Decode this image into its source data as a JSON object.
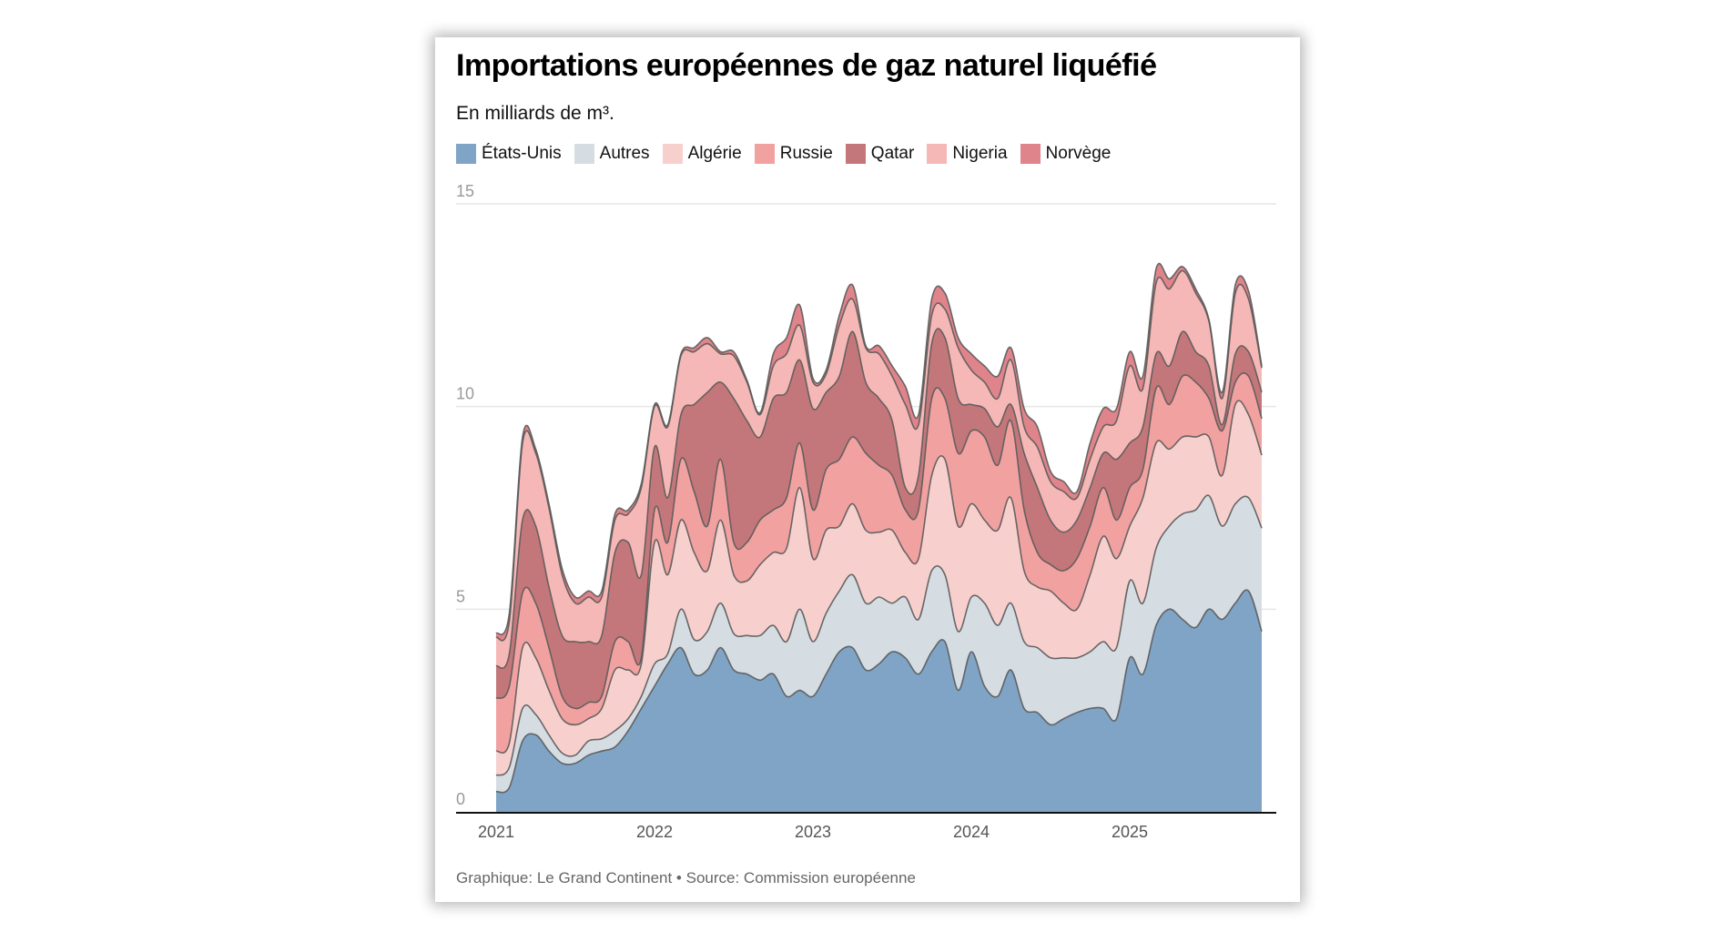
{
  "title": "Importations européennes de gaz naturel liquéfié",
  "subtitle": "En milliards de m³.",
  "footer": "Graphique: Le Grand Continent • Source: Commission européenne",
  "chart_data": {
    "type": "area",
    "stacked": true,
    "title": "Importations européennes de gaz naturel liquéfié",
    "ylabel": "En milliards de m³.",
    "ylim": [
      0,
      15
    ],
    "yticks": [
      "0",
      "5",
      "10",
      "15"
    ],
    "xticks": [
      "2021",
      "2022",
      "2023",
      "2024",
      "2025"
    ],
    "grid": true,
    "legend": "top",
    "x": [
      "2021-01",
      "2021-02",
      "2021-03",
      "2021-04",
      "2021-05",
      "2021-06",
      "2021-07",
      "2021-08",
      "2021-09",
      "2021-10",
      "2021-11",
      "2021-12",
      "2022-01",
      "2022-02",
      "2022-03",
      "2022-04",
      "2022-05",
      "2022-06",
      "2022-07",
      "2022-08",
      "2022-09",
      "2022-10",
      "2022-11",
      "2022-12",
      "2023-01",
      "2023-02",
      "2023-03",
      "2023-04",
      "2023-05",
      "2023-06",
      "2023-07",
      "2023-08",
      "2023-09",
      "2023-10",
      "2023-11",
      "2023-12",
      "2024-01",
      "2024-02",
      "2024-03",
      "2024-04",
      "2024-05",
      "2024-06",
      "2024-07",
      "2024-08",
      "2024-09",
      "2024-10",
      "2024-11",
      "2024-12",
      "2025-01",
      "2025-02",
      "2025-03",
      "2025-04",
      "2025-05",
      "2025-06",
      "2025-07",
      "2025-08",
      "2025-09",
      "2025-10",
      "2025-11"
    ],
    "series": [
      {
        "name": "États-Unis",
        "color": "#7fa4c6",
        "values": [
          0.5,
          0.6,
          1.75,
          1.9,
          1.5,
          1.2,
          1.2,
          1.4,
          1.5,
          1.6,
          2.0,
          2.55,
          3.1,
          3.65,
          4.05,
          3.4,
          3.5,
          4.05,
          3.5,
          3.4,
          3.25,
          3.4,
          2.85,
          3.0,
          2.85,
          3.4,
          3.95,
          4.05,
          3.5,
          3.65,
          3.95,
          3.8,
          3.4,
          3.95,
          4.2,
          3.0,
          3.95,
          3.1,
          2.85,
          3.5,
          2.55,
          2.45,
          2.15,
          2.3,
          2.45,
          2.55,
          2.55,
          2.3,
          3.8,
          3.4,
          4.6,
          5.0,
          4.75,
          4.55,
          5.0,
          4.75,
          5.15,
          5.45,
          4.45
        ]
      },
      {
        "name": "Autres",
        "color": "#d5dde3",
        "values": [
          0.4,
          0.5,
          0.8,
          0.5,
          0.4,
          0.25,
          0.2,
          0.35,
          0.3,
          0.4,
          0.3,
          0.3,
          0.55,
          0.25,
          0.95,
          0.85,
          0.95,
          1.1,
          0.9,
          0.95,
          1.1,
          1.2,
          1.35,
          2.0,
          1.35,
          1.5,
          1.5,
          1.8,
          1.65,
          1.65,
          1.2,
          1.5,
          1.35,
          2.0,
          1.65,
          1.45,
          1.35,
          2.05,
          1.75,
          1.65,
          1.65,
          1.6,
          1.65,
          1.5,
          1.35,
          1.4,
          1.65,
          1.75,
          1.9,
          1.75,
          1.9,
          2.05,
          2.6,
          2.9,
          2.8,
          2.3,
          2.45,
          2.3,
          2.55
        ]
      },
      {
        "name": "Algérie",
        "color": "#f7d0ce",
        "values": [
          0.6,
          0.6,
          1.5,
          1.4,
          1.1,
          0.85,
          0.75,
          0.55,
          0.75,
          1.5,
          1.2,
          0.8,
          3.0,
          1.95,
          2.2,
          2.15,
          1.5,
          2.05,
          1.45,
          1.35,
          1.75,
          1.8,
          2.3,
          3.0,
          2.05,
          2.05,
          1.6,
          1.75,
          1.8,
          1.6,
          1.8,
          1.1,
          1.5,
          2.35,
          2.85,
          2.6,
          2.3,
          2.05,
          2.35,
          2.6,
          1.75,
          1.5,
          1.65,
          1.35,
          1.2,
          1.9,
          2.6,
          2.2,
          1.35,
          2.6,
          2.6,
          1.9,
          1.9,
          1.8,
          1.45,
          1.25,
          2.45,
          2.05,
          1.8
        ]
      },
      {
        "name": "Russie",
        "color": "#f2a1a1",
        "values": [
          1.3,
          1.4,
          1.35,
          1.35,
          1.05,
          0.55,
          0.4,
          0.4,
          0.3,
          0.7,
          0.7,
          0.15,
          0.8,
          0.8,
          1.5,
          1.5,
          1.1,
          1.5,
          0.8,
          0.95,
          1.1,
          1.05,
          1.25,
          1.1,
          1.2,
          1.5,
          1.65,
          1.65,
          1.9,
          1.65,
          1.35,
          1.05,
          1.2,
          1.9,
          1.5,
          1.8,
          1.8,
          2.05,
          1.6,
          1.9,
          1.5,
          0.85,
          0.65,
          0.8,
          1.25,
          1.2,
          1.2,
          0.95,
          0.95,
          0.7,
          1.35,
          1.1,
          1.5,
          1.35,
          0.95,
          1.1,
          0.55,
          0.95,
          0.9
        ]
      },
      {
        "name": "Qatar",
        "color": "#c4777a",
        "values": [
          0.8,
          0.8,
          1.8,
          1.9,
          1.5,
          1.5,
          1.65,
          1.5,
          1.5,
          2.2,
          2.45,
          2.05,
          1.55,
          1.1,
          1.1,
          2.15,
          3.3,
          1.9,
          3.55,
          3.0,
          2.05,
          2.75,
          2.6,
          2.05,
          2.5,
          1.9,
          2.05,
          2.6,
          1.75,
          1.65,
          1.35,
          0.55,
          0.85,
          1.35,
          1.5,
          1.35,
          0.65,
          0.7,
          0.95,
          0.4,
          1.4,
          1.6,
          1.1,
          0.95,
          0.95,
          0.95,
          0.85,
          1.5,
          1.1,
          1.05,
          0.85,
          0.95,
          1.1,
          0.75,
          0.8,
          0.15,
          0.7,
          0.6,
          0.65
        ]
      },
      {
        "name": "Nigeria",
        "color": "#f6b8b6",
        "values": [
          0.7,
          0.8,
          1.9,
          1.8,
          1.95,
          1.5,
          0.95,
          1.1,
          0.95,
          0.8,
          0.7,
          2.15,
          1.0,
          1.75,
          1.45,
          1.3,
          1.2,
          0.7,
          1.05,
          0.95,
          0.55,
          0.8,
          0.95,
          0.85,
          0.65,
          0.45,
          1.25,
          0.8,
          0.85,
          1.1,
          1.1,
          2.05,
          1.25,
          0.7,
          0.7,
          1.25,
          0.85,
          0.65,
          0.7,
          1.1,
          0.65,
          1.0,
          0.95,
          1.0,
          0.55,
          0.7,
          0.65,
          0.95,
          1.9,
          0.95,
          1.75,
          1.9,
          1.5,
          1.45,
          1.1,
          0.65,
          1.5,
          1.3,
          0.6
        ]
      },
      {
        "name": "Norvège",
        "color": "#df848a",
        "values": [
          0.1,
          0.2,
          0.15,
          0.1,
          0.1,
          0.15,
          0.15,
          0.15,
          0.15,
          0.15,
          0.1,
          0.1,
          0.05,
          0.05,
          0.05,
          0.1,
          0.15,
          0.05,
          0.1,
          0.05,
          0.05,
          0.3,
          0.4,
          0.5,
          0.1,
          0.1,
          0.25,
          0.35,
          0.05,
          0.2,
          0.25,
          0.45,
          0.25,
          0.4,
          0.4,
          0.25,
          0.4,
          0.4,
          0.55,
          0.3,
          0.45,
          0.5,
          0.25,
          0.25,
          0.15,
          0.4,
          0.45,
          0.3,
          0.35,
          0.3,
          0.35,
          0.25,
          0.1,
          0.1,
          0.05,
          0.15,
          0.2,
          0.2,
          0.05
        ]
      }
    ]
  }
}
